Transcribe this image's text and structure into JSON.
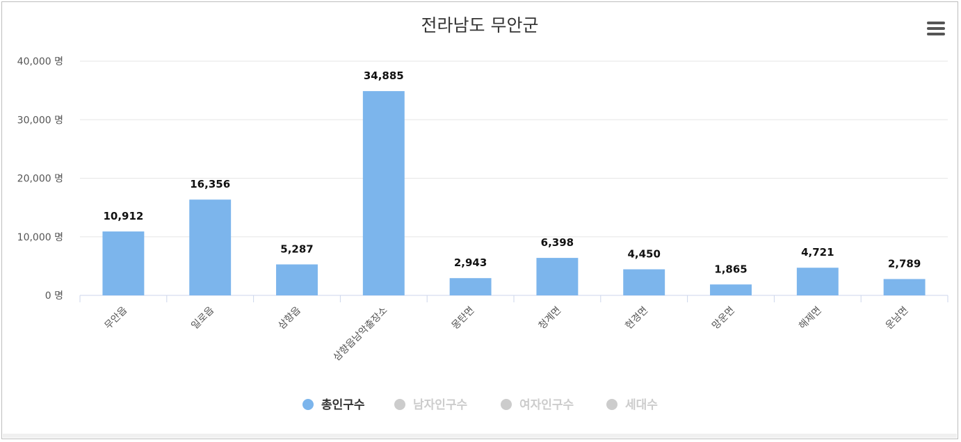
{
  "chart_data": {
    "type": "bar",
    "title": "전라남도 무안군",
    "categories": [
      "무안읍",
      "일로읍",
      "삼향읍",
      "삼향읍남악출장소",
      "몽탄면",
      "청계면",
      "현경면",
      "망운면",
      "해제면",
      "운남면"
    ],
    "series": [
      {
        "name": "총인구수",
        "values": [
          10912,
          16356,
          5287,
          34885,
          2943,
          6398,
          4450,
          1865,
          4721,
          2789
        ],
        "data_labels": [
          "10,912",
          "16,356",
          "5,287",
          "34,885",
          "2,943",
          "6,398",
          "4,450",
          "1,865",
          "4,721",
          "2,789"
        ],
        "color": "#7cb5ec",
        "visible": true
      }
    ],
    "legend": {
      "placement": "bottom-center",
      "items": [
        {
          "label": "총인구수",
          "active": true
        },
        {
          "label": "남자인구수",
          "active": false
        },
        {
          "label": "여자인구수",
          "active": false
        },
        {
          "label": "세대수",
          "active": false
        }
      ]
    },
    "y_ticks": [
      {
        "value": 0,
        "label": "0 명"
      },
      {
        "value": 10000,
        "label": "10,000 명"
      },
      {
        "value": 20000,
        "label": "20,000 명"
      },
      {
        "value": 30000,
        "label": "30,000 명"
      },
      {
        "value": 40000,
        "label": "40,000 명"
      }
    ],
    "ylim": [
      0,
      40000
    ],
    "grid": true,
    "xlabel": "",
    "ylabel": ""
  },
  "colors": {
    "bar": "#7cb5ec",
    "legend_active_text": "#333333",
    "legend_inactive": "#cccccc",
    "grid": "#e6e6e6",
    "axis": "#ccd6eb"
  },
  "menu": {
    "icon": "hamburger-menu-icon"
  }
}
